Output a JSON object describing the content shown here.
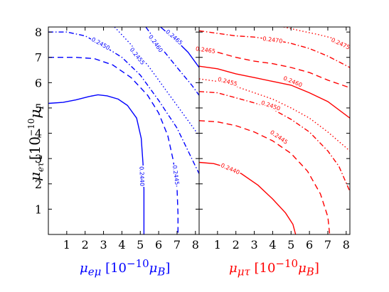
{
  "colors": {
    "left": "#0000ff",
    "right": "#ff0000",
    "frame": "#000000"
  },
  "axes": {
    "ylabel_var": "μ",
    "ylabel_sub": "eτ",
    "ylabel_unit": "[10",
    "ylabel_exp": "−10",
    "ylabel_mu": "μ",
    "ylabel_musub": "B",
    "ylabel_close": "]"
  },
  "left_xlabel": {
    "var": "μ",
    "sub": "eμ",
    "unit": "[10",
    "exp": "−10",
    "mu": "μ",
    "musub": "B",
    "close": "]"
  },
  "right_xlabel": {
    "var": "μ",
    "sub": "μτ",
    "unit": "[10",
    "exp": "−10",
    "mu": "μ",
    "musub": "B",
    "close": "]"
  },
  "chart_data": [
    {
      "type": "contour",
      "panel": "left",
      "color": "#0000ff",
      "xlim": [
        0,
        8.2
      ],
      "ylim": [
        0,
        8.2
      ],
      "xticks": [
        "1",
        "2",
        "3",
        "4",
        "5",
        "6",
        "7",
        "8"
      ],
      "yticks": [
        "1",
        "2",
        "3",
        "4",
        "5",
        "6",
        "7",
        "8"
      ],
      "contours": [
        {
          "level": "0.2440",
          "style": "solid",
          "label_at": [
            5.1,
            2.3
          ],
          "points": [
            [
              0,
              5.18
            ],
            [
              0.8,
              5.22
            ],
            [
              1.5,
              5.32
            ],
            [
              2.2,
              5.45
            ],
            [
              2.7,
              5.52
            ],
            [
              3.2,
              5.48
            ],
            [
              3.8,
              5.35
            ],
            [
              4.3,
              5.1
            ],
            [
              4.8,
              4.6
            ],
            [
              5.05,
              3.8
            ],
            [
              5.15,
              2.8
            ],
            [
              5.2,
              1.8
            ],
            [
              5.2,
              0.9
            ],
            [
              5.2,
              0
            ]
          ]
        },
        {
          "level": "0.2445",
          "style": "dashed",
          "label_at": [
            6.95,
            2.35
          ],
          "points": [
            [
              0,
              7.0
            ],
            [
              1.5,
              7.0
            ],
            [
              2.5,
              6.95
            ],
            [
              3.5,
              6.7
            ],
            [
              4.5,
              6.2
            ],
            [
              5.4,
              5.5
            ],
            [
              6.0,
              4.8
            ],
            [
              6.5,
              3.9
            ],
            [
              6.8,
              2.9
            ],
            [
              7.0,
              1.8
            ],
            [
              7.05,
              0.8
            ],
            [
              7.05,
              0
            ]
          ]
        },
        {
          "level": "0.2450",
          "style": "dashdot",
          "label_at": [
            2.85,
            7.55
          ],
          "points": [
            [
              0,
              8.0
            ],
            [
              1.0,
              8.0
            ],
            [
              2.0,
              7.85
            ],
            [
              3.0,
              7.45
            ],
            [
              4.0,
              7.0
            ],
            [
              5.0,
              6.3
            ],
            [
              6.0,
              5.3
            ],
            [
              7.0,
              4.2
            ],
            [
              7.6,
              3.3
            ],
            [
              8.0,
              2.7
            ],
            [
              8.2,
              2.4
            ]
          ]
        },
        {
          "level": "0.2455",
          "style": "dotted",
          "label_at": [
            4.85,
            7.05
          ],
          "points": [
            [
              3.6,
              8.2
            ],
            [
              4.5,
              7.5
            ],
            [
              5.5,
              6.6
            ],
            [
              6.5,
              5.6
            ],
            [
              7.3,
              4.8
            ],
            [
              8.0,
              4.1
            ],
            [
              8.2,
              3.9
            ]
          ]
        },
        {
          "level": "0.2460",
          "style": "dashdot",
          "label_at": [
            5.85,
            7.55
          ],
          "points": [
            [
              5.3,
              8.2
            ],
            [
              6.0,
              7.5
            ],
            [
              7.0,
              6.6
            ],
            [
              7.8,
              5.9
            ],
            [
              8.2,
              5.5
            ]
          ]
        },
        {
          "level": "0.2465",
          "style": "solid",
          "label_at": [
            6.85,
            7.8
          ],
          "points": [
            [
              6.1,
              8.2
            ],
            [
              6.9,
              7.7
            ],
            [
              7.6,
              7.2
            ],
            [
              8.2,
              6.6
            ]
          ]
        }
      ]
    },
    {
      "type": "contour",
      "panel": "right",
      "color": "#ff0000",
      "xlim": [
        0,
        8.2
      ],
      "ylim": [
        0,
        8.2
      ],
      "xticks": [
        "1",
        "2",
        "3",
        "4",
        "5",
        "6",
        "7",
        "8"
      ],
      "yticks": [],
      "contours": [
        {
          "level": "0.2440",
          "style": "solid",
          "label_at": [
            1.7,
            2.6
          ],
          "points": [
            [
              0,
              2.85
            ],
            [
              0.8,
              2.8
            ],
            [
              1.5,
              2.65
            ],
            [
              2.3,
              2.4
            ],
            [
              3.2,
              1.95
            ],
            [
              4.0,
              1.4
            ],
            [
              4.7,
              0.85
            ],
            [
              5.1,
              0.4
            ],
            [
              5.25,
              0
            ]
          ]
        },
        {
          "level": "0.2445",
          "style": "dashed",
          "label_at": [
            4.35,
            3.85
          ],
          "points": [
            [
              0,
              4.5
            ],
            [
              1.0,
              4.45
            ],
            [
              2.0,
              4.3
            ],
            [
              3.0,
              4.05
            ],
            [
              4.0,
              3.7
            ],
            [
              5.0,
              3.2
            ],
            [
              5.9,
              2.5
            ],
            [
              6.6,
              1.6
            ],
            [
              7.0,
              0.7
            ],
            [
              7.1,
              0
            ]
          ]
        },
        {
          "level": "0.2450",
          "style": "dashdot",
          "label_at": [
            3.9,
            5.1
          ],
          "points": [
            [
              0,
              5.65
            ],
            [
              1.0,
              5.6
            ],
            [
              2.0,
              5.4
            ],
            [
              3.0,
              5.2
            ],
            [
              4.0,
              4.95
            ],
            [
              5.0,
              4.55
            ],
            [
              6.0,
              4.05
            ],
            [
              7.0,
              3.3
            ],
            [
              7.6,
              2.7
            ],
            [
              8.2,
              1.7
            ]
          ]
        },
        {
          "level": "0.2455",
          "style": "dotted",
          "label_at": [
            1.55,
            6.05
          ],
          "points": [
            [
              0,
              6.15
            ],
            [
              1.0,
              6.05
            ],
            [
              2.0,
              5.85
            ],
            [
              3.0,
              5.6
            ],
            [
              4.0,
              5.35
            ],
            [
              5.0,
              5.0
            ],
            [
              6.0,
              4.6
            ],
            [
              7.0,
              4.05
            ],
            [
              8.2,
              3.3
            ]
          ]
        },
        {
          "level": "0.2460",
          "style": "solid",
          "label_at": [
            5.1,
            6.05
          ],
          "points": [
            [
              0,
              6.65
            ],
            [
              1.0,
              6.55
            ],
            [
              2.0,
              6.35
            ],
            [
              3.0,
              6.2
            ],
            [
              4.0,
              6.05
            ],
            [
              5.0,
              5.9
            ],
            [
              6.0,
              5.6
            ],
            [
              7.0,
              5.25
            ],
            [
              8.2,
              4.6
            ]
          ]
        },
        {
          "level": "0.2465",
          "style": "dashed",
          "label_at": [
            0.35,
            7.3
          ],
          "points": [
            [
              0,
              7.3
            ],
            [
              1.0,
              7.2
            ],
            [
              2.0,
              7.0
            ],
            [
              3.0,
              6.85
            ],
            [
              4.0,
              6.75
            ],
            [
              5.0,
              6.6
            ],
            [
              6.0,
              6.4
            ],
            [
              7.0,
              6.1
            ],
            [
              8.2,
              5.8
            ]
          ]
        },
        {
          "level": "0.2470",
          "style": "dashdot",
          "label_at": [
            4.0,
            7.7
          ],
          "points": [
            [
              0,
              8.05
            ],
            [
              1.0,
              7.95
            ],
            [
              2.0,
              7.85
            ],
            [
              3.0,
              7.8
            ],
            [
              4.0,
              7.7
            ],
            [
              5.0,
              7.55
            ],
            [
              6.0,
              7.35
            ],
            [
              7.0,
              7.05
            ],
            [
              8.2,
              6.6
            ]
          ]
        },
        {
          "level": "0.2475",
          "style": "dotted",
          "label_at": [
            7.7,
            7.55
          ],
          "points": [
            [
              4.6,
              8.2
            ],
            [
              5.5,
              8.05
            ],
            [
              6.5,
              7.9
            ],
            [
              7.3,
              7.75
            ],
            [
              8.2,
              7.45
            ]
          ]
        }
      ]
    }
  ]
}
